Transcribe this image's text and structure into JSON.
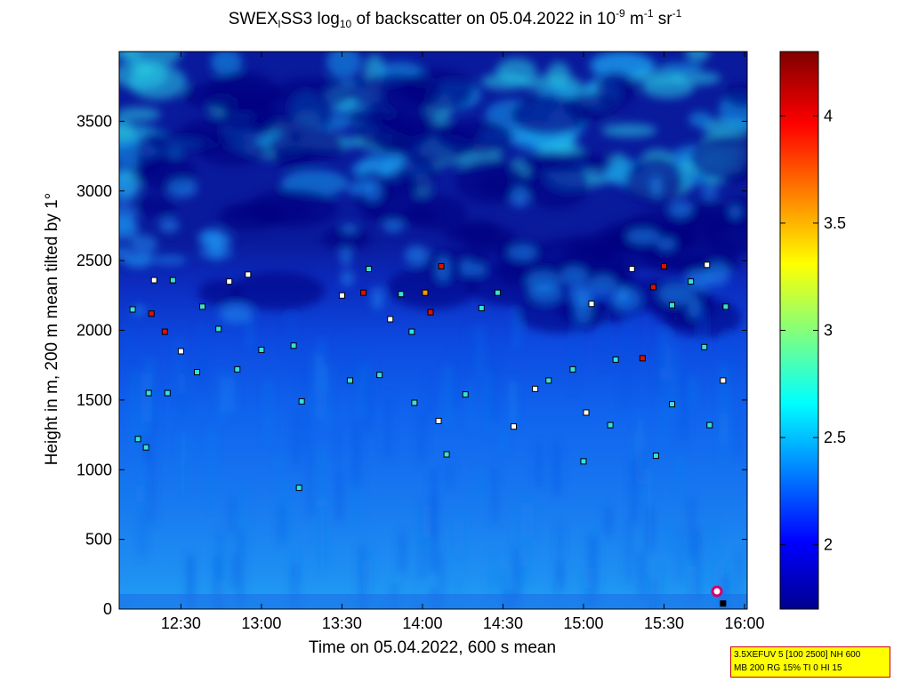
{
  "title": {
    "prefix": "SWEX",
    "sub1": "l",
    "mid": "SS3 log",
    "sub2": "10",
    "rest": " of backscatter on 05.04.2022 in 10",
    "exp1": "-9",
    "unit1": " m",
    "exp2": "-1",
    "unit2": " sr",
    "exp3": "-1"
  },
  "info_box": {
    "line1": "3.5XEFUV 5 [100 2500] NH 600",
    "line2": "MB 200 RG 15% TI 0 HI 15"
  },
  "colors": {
    "dark": "#00008c",
    "mid": "#0a3cd2",
    "light": "#1e8cf0",
    "cyan": "#28d2e6",
    "marker_cyan": "#38e0d8",
    "marker_white": "#ffffff",
    "marker_red": "#dd1100",
    "marker_orange": "#ff9900",
    "marker_black": "#000000"
  },
  "chart_data": {
    "type": "heatmap",
    "xlabel": "Time on 05.04.2022, 600 s mean",
    "ylabel": "Height in m, 200 m mean tilted by 1°",
    "x_ticks": [
      "12:30",
      "13:00",
      "13:30",
      "14:00",
      "14:30",
      "15:00",
      "15:30",
      "16:00"
    ],
    "x_range": [
      "12:07",
      "16:01"
    ],
    "y_ticks": [
      0,
      500,
      1000,
      1500,
      2000,
      2500,
      3000,
      3500
    ],
    "y_range": [
      0,
      4000
    ],
    "colorbar": {
      "ticks": [
        "2",
        "2.5",
        "3",
        "3.5",
        "4"
      ],
      "range": [
        1.7,
        4.3
      ]
    },
    "cloud_base_markers": [
      {
        "time": "12:12",
        "height": 2150,
        "color": "cyan"
      },
      {
        "time": "12:14",
        "height": 1220,
        "color": "cyan"
      },
      {
        "time": "12:17",
        "height": 1160,
        "color": "cyan"
      },
      {
        "time": "12:19",
        "height": 2120,
        "color": "red"
      },
      {
        "time": "12:20",
        "height": 2360,
        "color": "white"
      },
      {
        "time": "12:24",
        "height": 1990,
        "color": "red"
      },
      {
        "time": "12:27",
        "height": 2360,
        "color": "cyan"
      },
      {
        "time": "12:18",
        "height": 1550,
        "color": "cyan"
      },
      {
        "time": "12:25",
        "height": 1550,
        "color": "cyan"
      },
      {
        "time": "12:30",
        "height": 1850,
        "color": "white"
      },
      {
        "time": "12:36",
        "height": 1700,
        "color": "cyan"
      },
      {
        "time": "12:38",
        "height": 2170,
        "color": "cyan"
      },
      {
        "time": "12:44",
        "height": 2010,
        "color": "cyan"
      },
      {
        "time": "12:48",
        "height": 2350,
        "color": "white"
      },
      {
        "time": "12:55",
        "height": 2400,
        "color": "white"
      },
      {
        "time": "12:51",
        "height": 1720,
        "color": "cyan"
      },
      {
        "time": "13:00",
        "height": 1860,
        "color": "cyan"
      },
      {
        "time": "13:12",
        "height": 1890,
        "color": "cyan"
      },
      {
        "time": "13:15",
        "height": 1490,
        "color": "cyan"
      },
      {
        "time": "13:14",
        "height": 870,
        "color": "cyan"
      },
      {
        "time": "13:30",
        "height": 2250,
        "color": "white"
      },
      {
        "time": "13:33",
        "height": 1640,
        "color": "cyan"
      },
      {
        "time": "13:38",
        "height": 2270,
        "color": "red"
      },
      {
        "time": "13:40",
        "height": 2440,
        "color": "cyan"
      },
      {
        "time": "13:44",
        "height": 1680,
        "color": "cyan"
      },
      {
        "time": "13:48",
        "height": 2080,
        "color": "white"
      },
      {
        "time": "13:52",
        "height": 2260,
        "color": "cyan"
      },
      {
        "time": "13:56",
        "height": 1990,
        "color": "cyan"
      },
      {
        "time": "13:57",
        "height": 1480,
        "color": "cyan"
      },
      {
        "time": "14:01",
        "height": 2270,
        "color": "orange"
      },
      {
        "time": "14:03",
        "height": 2130,
        "color": "red"
      },
      {
        "time": "14:07",
        "height": 2460,
        "color": "red"
      },
      {
        "time": "14:06",
        "height": 1350,
        "color": "white"
      },
      {
        "time": "14:09",
        "height": 1110,
        "color": "cyan"
      },
      {
        "time": "14:16",
        "height": 1540,
        "color": "cyan"
      },
      {
        "time": "14:22",
        "height": 2160,
        "color": "cyan"
      },
      {
        "time": "14:28",
        "height": 2270,
        "color": "cyan"
      },
      {
        "time": "14:34",
        "height": 1310,
        "color": "white"
      },
      {
        "time": "14:42",
        "height": 1580,
        "color": "white"
      },
      {
        "time": "14:47",
        "height": 1640,
        "color": "cyan"
      },
      {
        "time": "14:56",
        "height": 1720,
        "color": "cyan"
      },
      {
        "time": "15:00",
        "height": 1060,
        "color": "cyan"
      },
      {
        "time": "15:01",
        "height": 1410,
        "color": "white"
      },
      {
        "time": "15:03",
        "height": 2190,
        "color": "white"
      },
      {
        "time": "15:10",
        "height": 1320,
        "color": "cyan"
      },
      {
        "time": "15:12",
        "height": 1790,
        "color": "cyan"
      },
      {
        "time": "15:18",
        "height": 2440,
        "color": "white"
      },
      {
        "time": "15:22",
        "height": 1800,
        "color": "red"
      },
      {
        "time": "15:26",
        "height": 2310,
        "color": "red"
      },
      {
        "time": "15:30",
        "height": 2460,
        "color": "red"
      },
      {
        "time": "15:33",
        "height": 2180,
        "color": "cyan"
      },
      {
        "time": "15:27",
        "height": 1100,
        "color": "cyan"
      },
      {
        "time": "15:33",
        "height": 1470,
        "color": "cyan"
      },
      {
        "time": "15:40",
        "height": 2350,
        "color": "cyan"
      },
      {
        "time": "15:45",
        "height": 1880,
        "color": "cyan"
      },
      {
        "time": "15:46",
        "height": 2470,
        "color": "white"
      },
      {
        "time": "15:47",
        "height": 1320,
        "color": "cyan"
      },
      {
        "time": "15:52",
        "height": 1640,
        "color": "white"
      },
      {
        "time": "15:53",
        "height": 2170,
        "color": "cyan"
      },
      {
        "time": "15:52",
        "height": 40,
        "color": "black"
      }
    ]
  }
}
